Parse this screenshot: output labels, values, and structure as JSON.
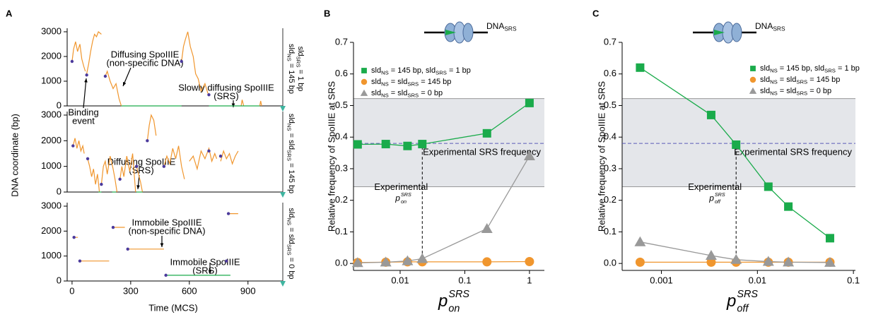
{
  "chart_data": [
    {
      "type": "line",
      "label": "A",
      "xlim": [
        -25,
        1060
      ],
      "ylim": [
        0,
        3000
      ],
      "yticks": [
        0,
        1000,
        2000,
        3000
      ],
      "side_label": [
        [
          "sld",
          "NS",
          " = 145 bp"
        ],
        [
          "sld",
          "SRS",
          " = 1 bp"
        ]
      ],
      "annotations": [
        [
          "Binding",
          "event"
        ],
        [
          "Diffusing SpoIIIE",
          "(non-specific DNA)"
        ],
        [
          "Slowly diffusing SpoIIIE",
          "(SRS)"
        ]
      ],
      "series": [
        {
          "color": "#f0962e",
          "marker": "none",
          "x": [
            0,
            8,
            18,
            28,
            40,
            50,
            60,
            68,
            null,
            75,
            85,
            95,
            105,
            115,
            125,
            135,
            150,
            null,
            170,
            180,
            195,
            210,
            225,
            240,
            252,
            null,
            560,
            570,
            580,
            592,
            605,
            620,
            632,
            645,
            660,
            680,
            695,
            null,
            865,
            870,
            878,
            null,
            960,
            965,
            970
          ],
          "values": [
            1800,
            2300,
            2600,
            2200,
            2500,
            1900,
            1600,
            1400,
            null,
            1300,
            1700,
            2200,
            2600,
            2900,
            2800,
            3000,
            2900,
            null,
            1200,
            1400,
            1000,
            700,
            900,
            300,
            0,
            null,
            1800,
            2400,
            2700,
            3000,
            2400,
            2000,
            1300,
            1100,
            600,
            900,
            500,
            null,
            0,
            250,
            0,
            null,
            0,
            200,
            0
          ]
        },
        {
          "color": "#1aab4b",
          "marker": "none",
          "x": [
            252,
            560,
            null,
            700,
            960
          ],
          "values": [
            0,
            0,
            null,
            0,
            0
          ]
        },
        {
          "color": "#4b3a9c",
          "marker": "dot",
          "x": [
            0,
            75,
            170,
            560,
            700
          ],
          "values": [
            1800,
            1250,
            1200,
            1800,
            450
          ]
        }
      ]
    },
    {
      "type": "line",
      "ylim": [
        0,
        3000
      ],
      "xlim": [
        -25,
        1060
      ],
      "yticks": [
        0,
        1000,
        2000,
        3000
      ],
      "ylabel": "DNA coordinate (bp)",
      "side_label": [
        [
          "sld",
          "NS",
          " = sld",
          "SRS",
          " = 145 bp"
        ]
      ],
      "annotations": [
        [
          "Diffusing SpoIIIE",
          "(SRS)"
        ]
      ],
      "series": [
        {
          "color": "#f0962e",
          "marker": "none",
          "x": [
            5,
            15,
            25,
            35,
            45,
            55,
            62,
            null,
            80,
            90,
            100,
            110,
            120,
            130,
            140,
            null,
            150,
            160,
            170,
            180,
            195,
            210,
            220,
            230,
            null,
            245,
            255,
            265,
            280,
            295,
            310,
            325,
            null,
            330,
            340,
            350,
            360,
            null,
            385,
            395,
            405,
            418,
            430,
            null,
            470,
            485,
            500,
            515,
            530,
            545,
            560,
            575,
            null,
            600,
            620,
            640,
            660,
            680,
            700,
            715,
            730,
            740,
            null,
            760,
            775,
            790,
            805,
            820,
            835,
            850
          ],
          "values": [
            1800,
            2100,
            1700,
            2000,
            1600,
            1800,
            1500,
            null,
            1300,
            1000,
            600,
            900,
            300,
            700,
            0,
            null,
            300,
            1000,
            1200,
            700,
            1400,
            900,
            500,
            0,
            null,
            500,
            1000,
            600,
            1400,
            800,
            1500,
            0,
            null,
            1000,
            700,
            400,
            0,
            null,
            2000,
            2600,
            3000,
            2800,
            2200,
            null,
            1000,
            1400,
            1100,
            1700,
            1300,
            1800,
            1000,
            500,
            null,
            1200,
            1400,
            900,
            1600,
            1300,
            1700,
            1200,
            1500,
            1300,
            null,
            1200,
            1600,
            1300,
            1500,
            1100,
            1400,
            1600
          ]
        },
        {
          "color": "#1aab4b",
          "marker": "none",
          "x": [
            135,
            150,
            null,
            205,
            225,
            null,
            330,
            360
          ],
          "values": [
            0,
            0,
            null,
            0,
            0,
            null,
            0,
            0
          ]
        },
        {
          "color": "#4b3a9c",
          "marker": "dot",
          "x": [
            5,
            80,
            150,
            245,
            330,
            385,
            470,
            700,
            760
          ],
          "values": [
            1800,
            1300,
            300,
            500,
            1000,
            2000,
            1000,
            1600,
            1400
          ]
        }
      ]
    },
    {
      "type": "line",
      "ylim": [
        0,
        3000
      ],
      "xlim": [
        -25,
        1060
      ],
      "yticks": [
        0,
        1000,
        2000,
        3000
      ],
      "xticks": [
        0,
        300,
        600,
        900
      ],
      "xlabel": "Time (MCS)",
      "side_label": [
        [
          "sld",
          "NS",
          " = sld",
          "SRS",
          " = 0 bp"
        ]
      ],
      "annotations": [
        [
          "Immobile SpoIIIE",
          "(non-specific DNA)"
        ],
        [
          "Immobile SpoIIIE",
          "(SRS)"
        ]
      ],
      "series": [
        {
          "color": "#f0962e",
          "marker": "none",
          "x": [
            10,
            30,
            null,
            40,
            190,
            null,
            210,
            270,
            null,
            285,
            470,
            null,
            800,
            850,
            null,
            790,
            800
          ],
          "values": [
            1750,
            1750,
            null,
            800,
            800,
            null,
            2150,
            2150,
            null,
            1280,
            1280,
            null,
            2700,
            2700,
            null,
            800,
            800
          ]
        },
        {
          "color": "#1aab4b",
          "marker": "none",
          "x": [
            480,
            810
          ],
          "values": [
            230,
            230
          ]
        },
        {
          "color": "#4b3a9c",
          "marker": "dot",
          "x": [
            10,
            40,
            210,
            285,
            480,
            800,
            790
          ],
          "values": [
            1750,
            800,
            2150,
            1280,
            230,
            2700,
            800
          ]
        }
      ]
    },
    {
      "type": "line",
      "label": "B",
      "log_x": true,
      "xlim": [
        0.0019,
        1.7
      ],
      "xticks": [
        0.01,
        0.1,
        1
      ],
      "ylim": [
        -0.022,
        0.7
      ],
      "yticks": [
        {
          "value": 0,
          "label": "0.0"
        },
        0.1,
        0.2,
        0.3,
        0.4,
        0.5,
        0.6,
        0.7
      ],
      "ylabel": "Relative frequency of SpoIIIE at SRS",
      "xlabel": {
        "base": "p",
        "sup": "SRS",
        "sub": "on"
      },
      "schematic_label": [
        "DNA",
        "SRS"
      ],
      "legend": "upper left",
      "band": [
        0.243,
        0.522
      ],
      "hline": 0.38,
      "hline_label": "Experimental SRS frequency",
      "vline": 0.022,
      "vline_label": {
        "line": "Experimental",
        "base": "p",
        "sup": "SRS",
        "sub": "on"
      },
      "x": [
        0.0022,
        0.006,
        0.013,
        0.022,
        0.22,
        1
      ],
      "series": [
        {
          "name": [
            "sld",
            "NS",
            " = 145 bp, sld",
            "SRS",
            " = 1 bp"
          ],
          "color": "#1aab4b",
          "marker": "square",
          "values": [
            0.377,
            0.378,
            0.372,
            0.378,
            0.412,
            0.508
          ]
        },
        {
          "name": [
            "sld",
            "NS",
            " = sld",
            "SRS",
            " = 145 bp"
          ],
          "color": "#f0962e",
          "marker": "circle",
          "values": [
            0.003,
            0.004,
            0.005,
            0.005,
            0.005,
            0.006
          ]
        },
        {
          "name": [
            "sld",
            "NS",
            " = sld",
            "SRS",
            " = 0 bp"
          ],
          "color": "#999999",
          "marker": "triangle",
          "values": [
            0.002,
            0.004,
            0.008,
            0.015,
            0.11,
            0.34
          ]
        }
      ]
    },
    {
      "type": "line",
      "label": "C",
      "log_x": true,
      "xlim": [
        0.00039,
        0.105
      ],
      "xticks": [
        0.001,
        0.01,
        0.1
      ],
      "ylim": [
        -0.022,
        0.7
      ],
      "yticks": [
        {
          "value": 0,
          "label": "0.0"
        },
        0.1,
        0.2,
        0.3,
        0.4,
        0.5,
        0.6,
        0.7
      ],
      "ylabel": "Relative frequency of SpoIIIE at SRS",
      "xlabel": {
        "base": "p",
        "sup": "SRS",
        "sub": "off"
      },
      "schematic_label": [
        "DNA",
        "SRS"
      ],
      "legend": "upper right",
      "band": [
        0.243,
        0.522
      ],
      "hline": 0.38,
      "hline_label": "Experimental SRS frequency",
      "vline": 0.006,
      "vline_label": {
        "line": "Experimental",
        "base": "p",
        "sup": "SRS",
        "sub": "off"
      },
      "x": [
        0.0006,
        0.0033,
        0.006,
        0.013,
        0.021,
        0.057
      ],
      "series": [
        {
          "name": [
            "sld",
            "NS",
            " = 145 bp, sld",
            "SRS",
            " = 1 bp"
          ],
          "color": "#1aab4b",
          "marker": "square",
          "values": [
            0.62,
            0.47,
            0.376,
            0.243,
            0.18,
            0.08
          ]
        },
        {
          "name": [
            "sld",
            "NS",
            " = sld",
            "SRS",
            " = 145 bp"
          ],
          "color": "#f0962e",
          "marker": "circle",
          "values": [
            0.004,
            0.004,
            0.004,
            0.004,
            0.004,
            0.004
          ]
        },
        {
          "name": [
            "sld",
            "NS",
            " = sld",
            "SRS",
            " = 0 bp"
          ],
          "color": "#999999",
          "marker": "triangle",
          "values": [
            0.068,
            0.025,
            0.012,
            0.006,
            0.004,
            0.003
          ]
        }
      ]
    }
  ]
}
